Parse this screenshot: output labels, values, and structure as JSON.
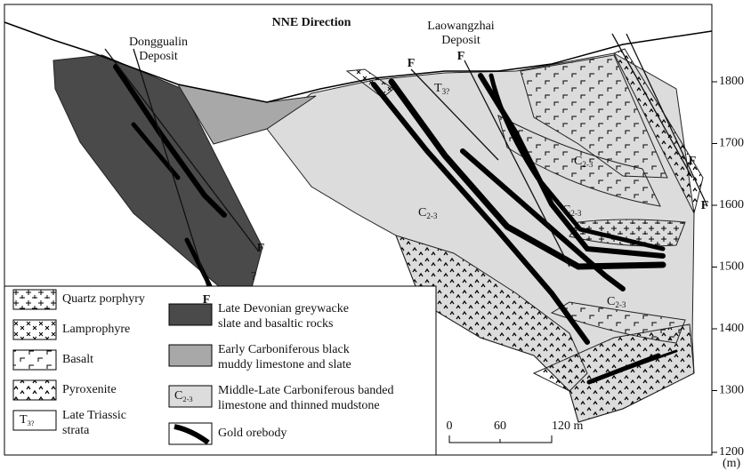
{
  "title": "NNE Direction",
  "deposits": [
    {
      "lines": [
        "Donggualin",
        "Deposit"
      ]
    },
    {
      "lines": [
        "Laowangzhai",
        "Deposit"
      ]
    }
  ],
  "faults": [
    "F",
    "F",
    "F",
    "F",
    "F",
    "F"
  ],
  "unit_labels": [
    {
      "symbol": "T",
      "sub": "3?"
    },
    {
      "symbol": "C",
      "sub": "2-3"
    },
    {
      "symbol": "C",
      "sub": "2-3"
    },
    {
      "symbol": "C",
      "sub": "2-3"
    },
    {
      "symbol": "C",
      "sub": "2-3"
    }
  ],
  "uncertain": "?",
  "elevation_axis": {
    "ticks": [
      1800,
      1700,
      1600,
      1500,
      1400,
      1300,
      1200
    ],
    "unit": "(m)"
  },
  "legend": [
    {
      "lines": [
        "Quartz porphyry"
      ]
    },
    {
      "lines": [
        "Lamprophyre"
      ]
    },
    {
      "lines": [
        "Basalt"
      ]
    },
    {
      "lines": [
        "Pyroxenite"
      ]
    },
    {
      "symbol": "T",
      "sub": "3?",
      "lines": [
        "Late Triassic",
        "strata"
      ]
    },
    {
      "lines": [
        "Late Devonian greywacke",
        "slate and basaltic rocks"
      ]
    },
    {
      "lines": [
        "Early Carboniferous black",
        "muddy limestone and slate"
      ]
    },
    {
      "symbol": "C",
      "sub": "2-3",
      "lines": [
        "Middle-Late Carboniferous banded",
        "limestone and thinned mudstone"
      ]
    },
    {
      "lines": [
        "Gold orebody"
      ]
    }
  ],
  "scale_bar": {
    "labels": [
      "0",
      "60",
      "120 m"
    ]
  }
}
